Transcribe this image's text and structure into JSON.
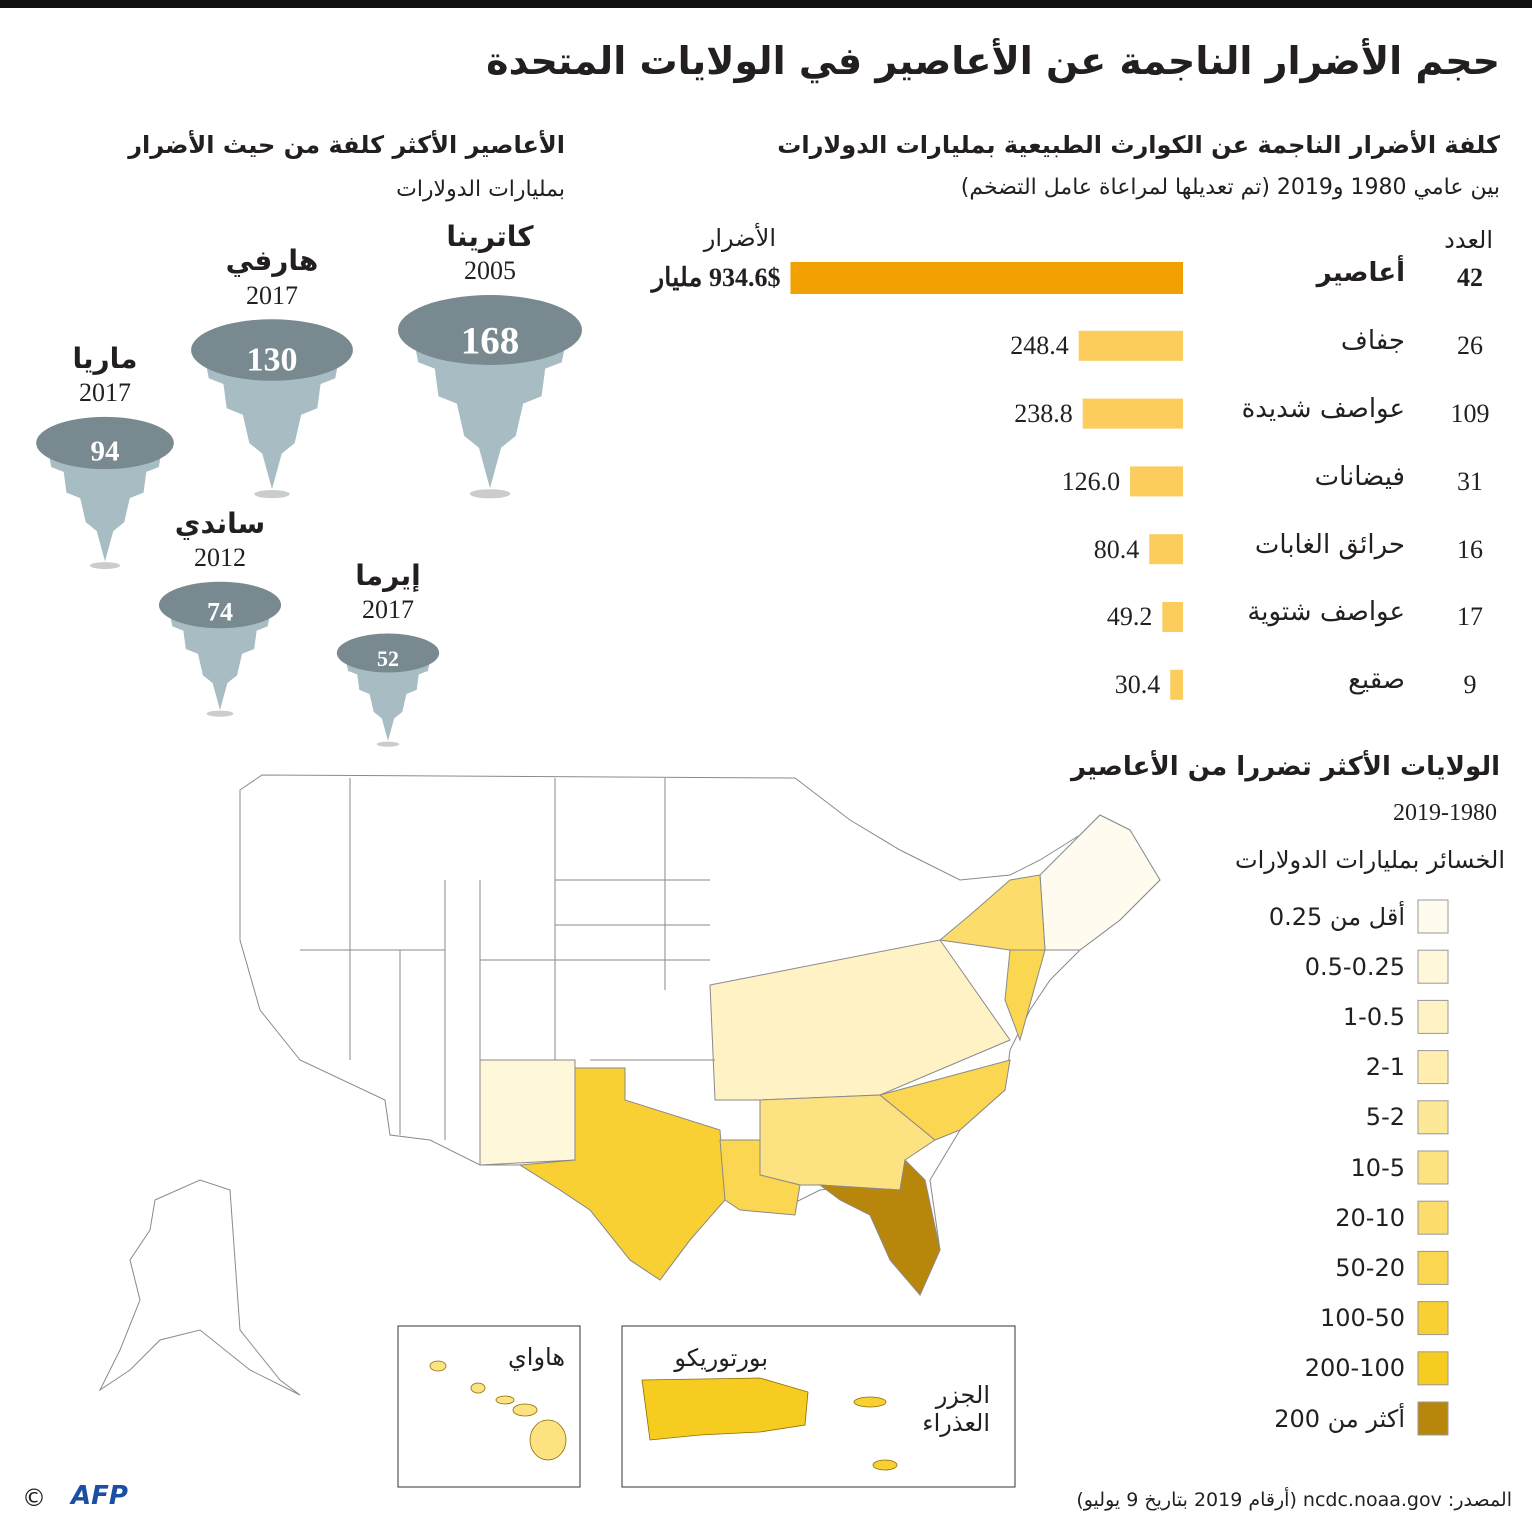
{
  "header": {
    "title": "حجم الأضرار الناجمة عن الأعاصير في الولايات المتحدة"
  },
  "chart_data": [
    {
      "type": "bar",
      "title": "كلفة الأضرار الناجمة عن الكوارث الطبيعية بمليارات الدولارات",
      "subtitle": "بين عامي 1980 و2019 (تم تعديلها لمراعاة عامل التضخم)",
      "count_header": "العدد",
      "value_header": "الأضرار",
      "categories": [
        "أعاصير",
        "جفاف",
        "عواصف شديدة",
        "فيضانات",
        "حرائق الغابات",
        "عواصف شتوية",
        "صقيع"
      ],
      "counts": [
        42,
        26,
        109,
        31,
        16,
        17,
        9
      ],
      "values": [
        934.6,
        248.4,
        238.8,
        126.0,
        80.4,
        49.2,
        30.4
      ],
      "value_labels": [
        "934.6$ مليار",
        "248.4",
        "238.8",
        "126.0",
        "80.4",
        "49.2",
        "30.4"
      ],
      "colors": [
        "#f0a000",
        "#fccc5c",
        "#fccc5c",
        "#fccc5c",
        "#fccc5c",
        "#fccc5c",
        "#fccc5c"
      ]
    },
    {
      "type": "tornado",
      "title": "الأعاصير الأكثر كلفة من حيث الأضرار",
      "subtitle": "بمليارات الدولارات",
      "categories": [
        "كاترينا",
        "هارفي",
        "ماريا",
        "ساندي",
        "إيرما"
      ],
      "years": [
        2005,
        2017,
        2017,
        2012,
        2017
      ],
      "values": [
        168,
        130,
        94,
        74,
        52
      ]
    }
  ],
  "map": {
    "title": "الولايات الأكثر تضررا من الأعاصير",
    "period": "2019-1980",
    "legend_title": "الخسائر بمليارات الدولارات",
    "legend": [
      {
        "label": "أقل من 0.25",
        "color": "#fffbee"
      },
      {
        "label": "0.5-0.25",
        "color": "#fff7da"
      },
      {
        "label": "1-0.5",
        "color": "#fff2c4"
      },
      {
        "label": "2-1",
        "color": "#ffeeae"
      },
      {
        "label": "5-2",
        "color": "#fde898"
      },
      {
        "label": "10-5",
        "color": "#fde282"
      },
      {
        "label": "20-10",
        "color": "#fcdc6a"
      },
      {
        "label": "50-20",
        "color": "#fbd650"
      },
      {
        "label": "100-50",
        "color": "#f9d034"
      },
      {
        "label": "200-100",
        "color": "#f7cc20"
      },
      {
        "label": "أكثر من 200",
        "color": "#b8860b"
      }
    ],
    "insets": {
      "hawaii": "هاواي",
      "puerto_rico": "بورتوريكو",
      "virgin_islands": "الجزر العذراء"
    }
  },
  "footer": {
    "source": "المصدر: ncdc.noaa.gov (أرقام 2019 بتاريخ 9 يوليو)",
    "logo": "AFP",
    "copyright": "©"
  }
}
